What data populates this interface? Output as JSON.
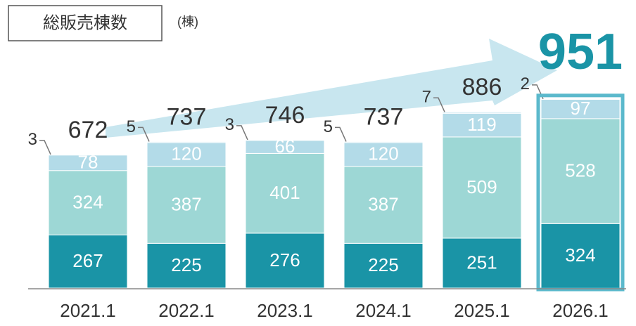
{
  "chart_data": {
    "type": "stacked_bar",
    "title": "総販売棟数",
    "unit": "(棟)",
    "categories": [
      "2021.1",
      "2022.1",
      "2023.1",
      "2024.1",
      "2025.1",
      "2026.1"
    ],
    "series": [
      {
        "color": "#1a94a6",
        "values": [
          267,
          225,
          276,
          225,
          251,
          324
        ]
      },
      {
        "color": "#9dd7d5",
        "values": [
          324,
          387,
          401,
          387,
          509,
          528
        ]
      },
      {
        "color": "#b3dbe8",
        "values": [
          78,
          120,
          66,
          120,
          119,
          97
        ]
      },
      {
        "color": "#d6ecf3",
        "values": [
          3,
          5,
          3,
          5,
          7,
          2
        ]
      }
    ],
    "totals": [
      672,
      737,
      746,
      737,
      886,
      951
    ]
  }
}
